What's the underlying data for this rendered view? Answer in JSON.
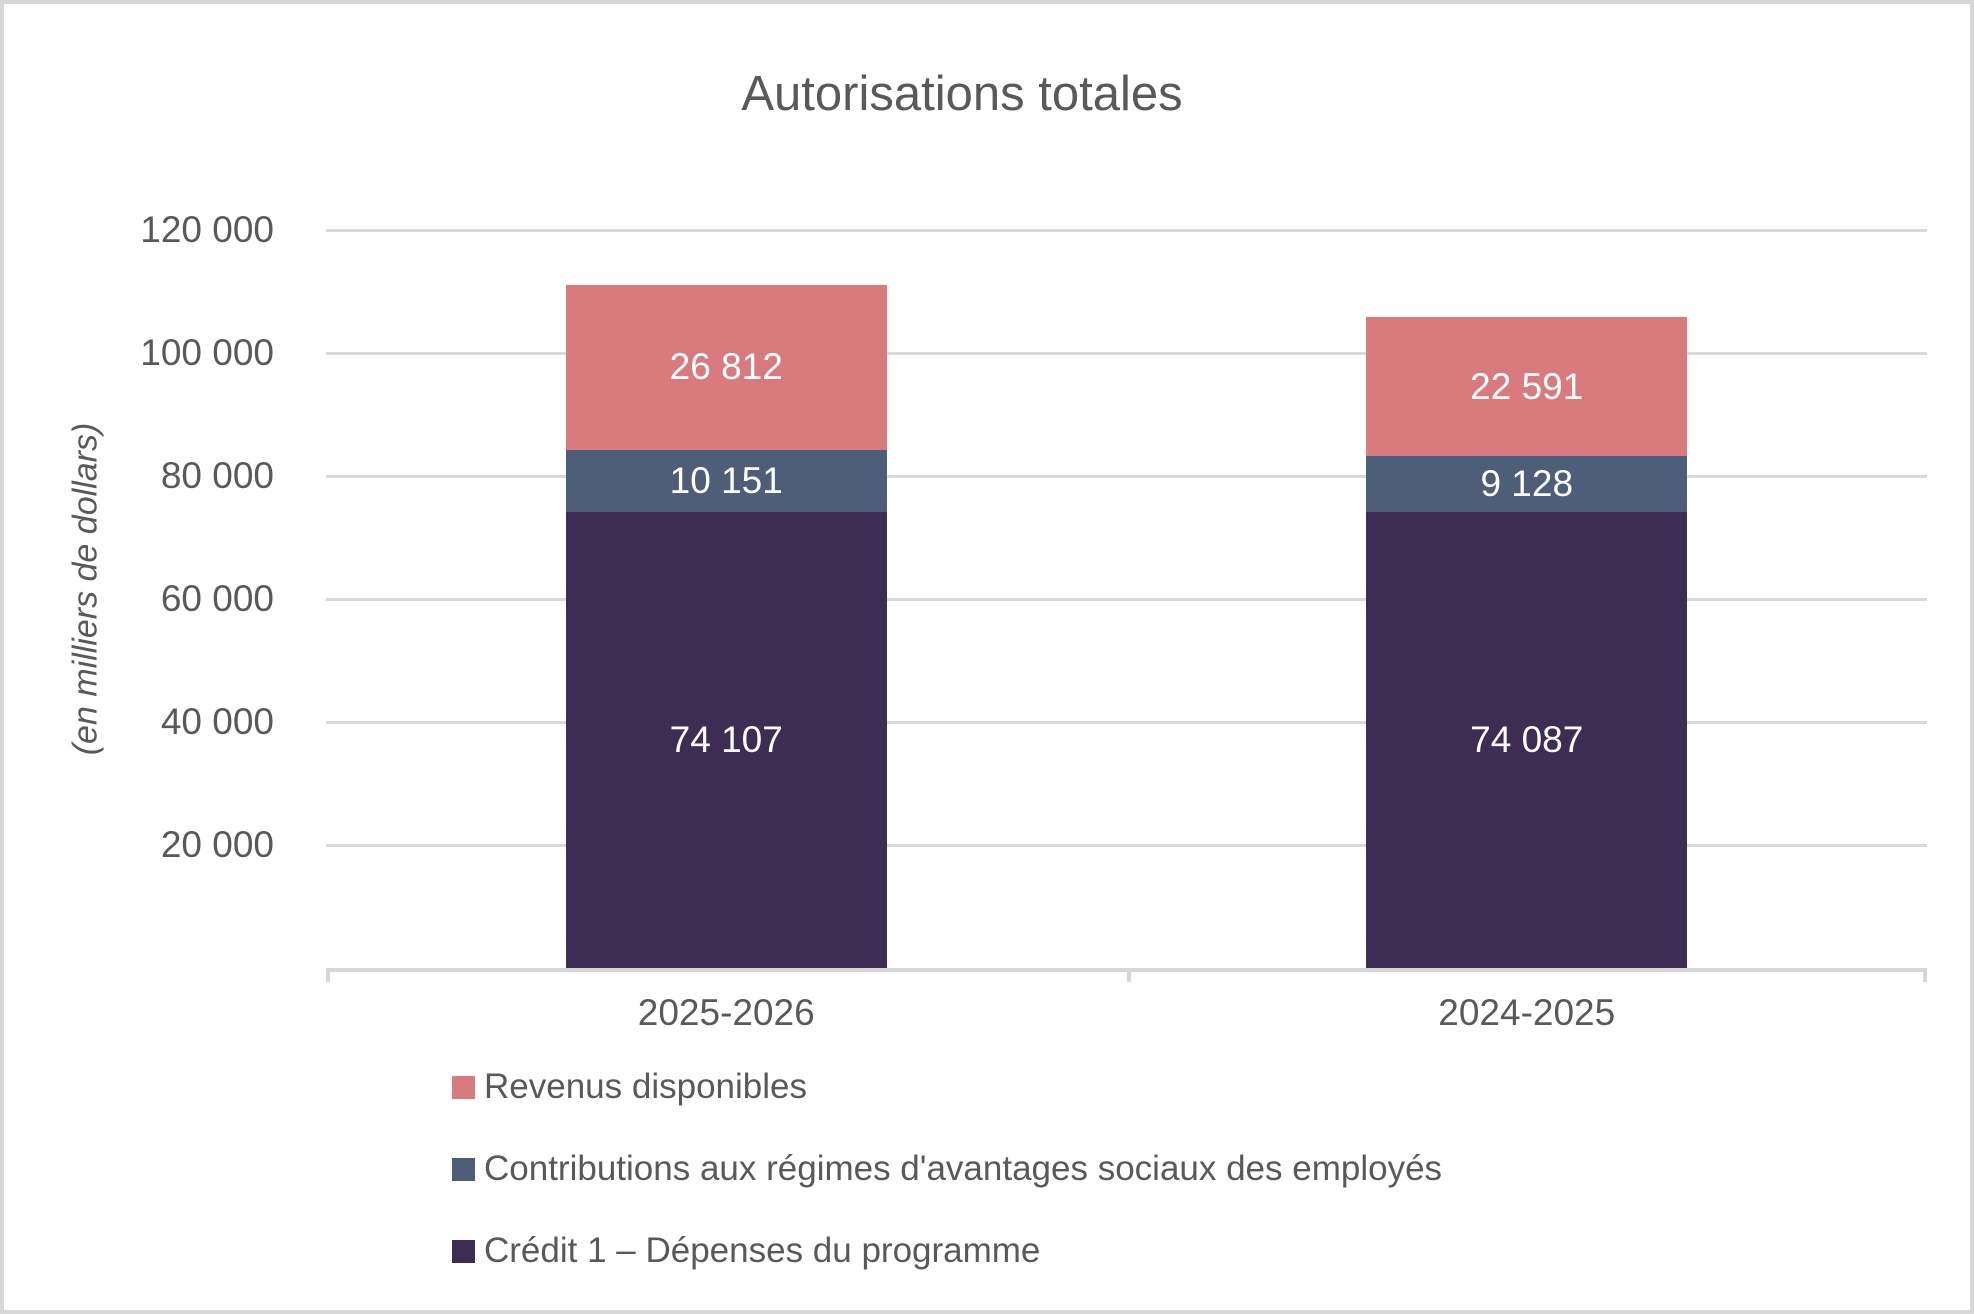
{
  "title": "Autorisations totales",
  "chart_data": {
    "type": "bar",
    "stacked": true,
    "title": "Autorisations totales",
    "xlabel": "",
    "ylabel": "(en milliers de dollars)",
    "categories": [
      "2025-2026",
      "2024-2025"
    ],
    "series": [
      {
        "name": "Crédit 1 – Dépenses du programme",
        "color": "#3d2d55",
        "values": [
          74107,
          74087
        ],
        "value_labels": [
          "74 107",
          "74 087"
        ]
      },
      {
        "name": "Contributions aux régimes d'avantages sociaux des employés",
        "color": "#4e5e79",
        "values": [
          10151,
          9128
        ],
        "value_labels": [
          "10 151",
          "9 128"
        ]
      },
      {
        "name": "Revenus disponibles",
        "color": "#d87a7e",
        "values": [
          26812,
          22591
        ],
        "value_labels": [
          "26 812",
          "22 591"
        ]
      }
    ],
    "ylim": [
      0,
      120000
    ],
    "ytick_interval": 20000,
    "yticks": [
      {
        "value": 20000,
        "label": "20 000"
      },
      {
        "value": 40000,
        "label": "40 000"
      },
      {
        "value": 60000,
        "label": "60 000"
      },
      {
        "value": 80000,
        "label": "80 000"
      },
      {
        "value": 100000,
        "label": "100 000"
      },
      {
        "value": 120000,
        "label": "120 000"
      }
    ],
    "grid": true,
    "legend_position": "bottom-left"
  },
  "legend": {
    "items": [
      {
        "label": "Revenus disponibles",
        "color": "#d87a7e"
      },
      {
        "label": "Contributions aux régimes d'avantages sociaux des employés",
        "color": "#4e5e79"
      },
      {
        "label": "Crédit 1 – Dépenses du programme",
        "color": "#3d2d55"
      }
    ]
  },
  "colors": {
    "gridline": "#d9d9d9",
    "axis_line": "#d6d6d6",
    "text": "#595959",
    "value_label_text": "#ffffff",
    "frame_border": "#d7d7d7",
    "background": "#ffffff"
  }
}
